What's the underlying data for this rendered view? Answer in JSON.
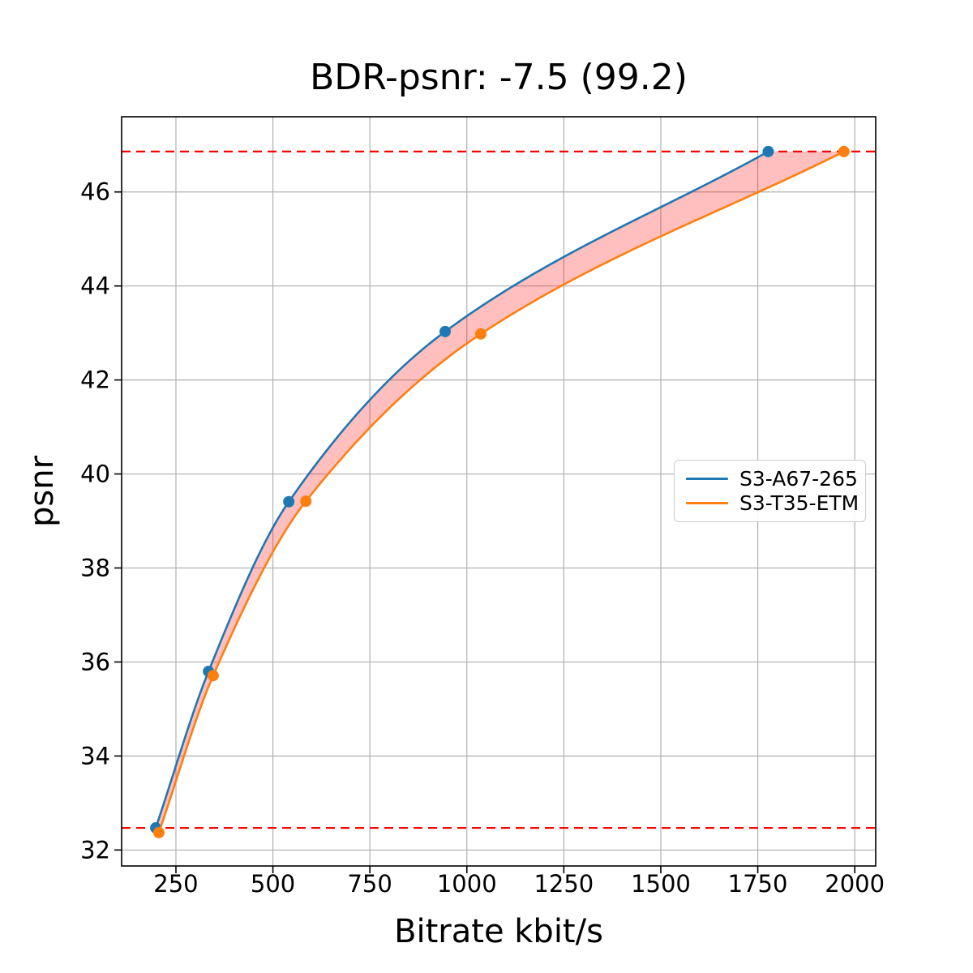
{
  "figure": {
    "title": "BDR-psnr: -7.5 (99.2)"
  },
  "chart_data": {
    "type": "line",
    "title": "BDR-psnr: -7.5 (99.2)",
    "xlabel": "Bitrate kbit/s",
    "ylabel": "psnr",
    "xlim": [
      110,
      2054
    ],
    "ylim": [
      31.66,
      47.6
    ],
    "xticks": [
      250,
      500,
      750,
      1000,
      1250,
      1500,
      1750,
      2000
    ],
    "yticks": [
      32,
      34,
      36,
      38,
      40,
      42,
      44,
      46
    ],
    "grid": true,
    "grid_color": "#b0b0b0",
    "legend": {
      "position": "center right",
      "entries": [
        "S3-A67-265",
        "S3-T35-ETM"
      ]
    },
    "series": [
      {
        "name": "S3-A67-265",
        "color": "#1f77b4",
        "marker": "circle",
        "x": [
          198,
          334,
          541,
          944,
          1777
        ],
        "y": [
          32.47,
          35.8,
          39.41,
          43.03,
          46.86
        ]
      },
      {
        "name": "S3-T35-ETM",
        "color": "#ff7f0e",
        "marker": "circle",
        "x": [
          206,
          346,
          585,
          1036,
          1972
        ],
        "y": [
          32.37,
          35.71,
          39.42,
          42.98,
          46.86
        ]
      }
    ],
    "hlines": {
      "values": [
        46.86,
        32.47
      ],
      "color": "#ff0000",
      "style": "dashed"
    },
    "fill_between_series": {
      "color": "#ff0000",
      "opacity": 0.25,
      "y_range": [
        32.47,
        46.86
      ]
    }
  }
}
